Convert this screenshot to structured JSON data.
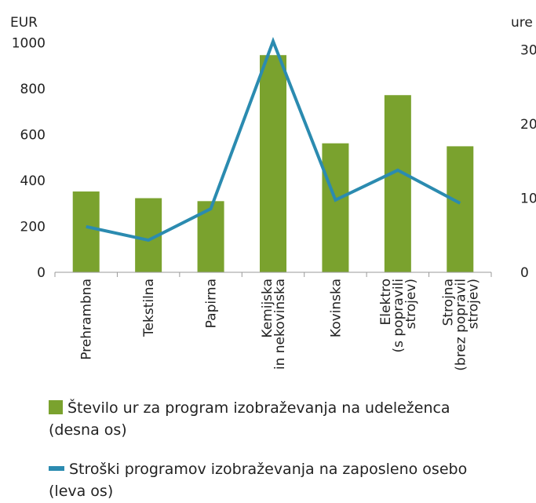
{
  "chart_data": {
    "type": "bar-line",
    "y_label": "EUR",
    "y2_label": "ure",
    "categories": [
      "Prehrambna",
      "Tekstilna",
      "Papirna",
      "Kemijska\nin nekovinska",
      "Kovinska",
      "Elektro\n(s popravili\nstrojev)",
      "Strojna\n(brez popravil\nstrojev)"
    ],
    "series": [
      {
        "name": "Število ur za program izobraževanja na udeleženca",
        "note": "(desna os)",
        "type": "bar",
        "axis": "y2",
        "color": "#7aa22e",
        "values": [
          10.9,
          10.0,
          9.6,
          29.3,
          17.4,
          23.9,
          17.0
        ]
      },
      {
        "name": "Stroški programov izobraževanja na zaposleno osebo",
        "note": "(leva os)",
        "type": "line",
        "axis": "y",
        "color": "#2b8bb0",
        "values": [
          199,
          140,
          277,
          1007,
          315,
          445,
          301
        ]
      }
    ],
    "ylim": [
      0,
      1050
    ],
    "yticks": [
      0,
      200,
      400,
      600,
      800,
      1000
    ],
    "y2lim": [
      0,
      32.5
    ],
    "y2ticks": [
      0,
      10,
      20,
      30
    ]
  }
}
